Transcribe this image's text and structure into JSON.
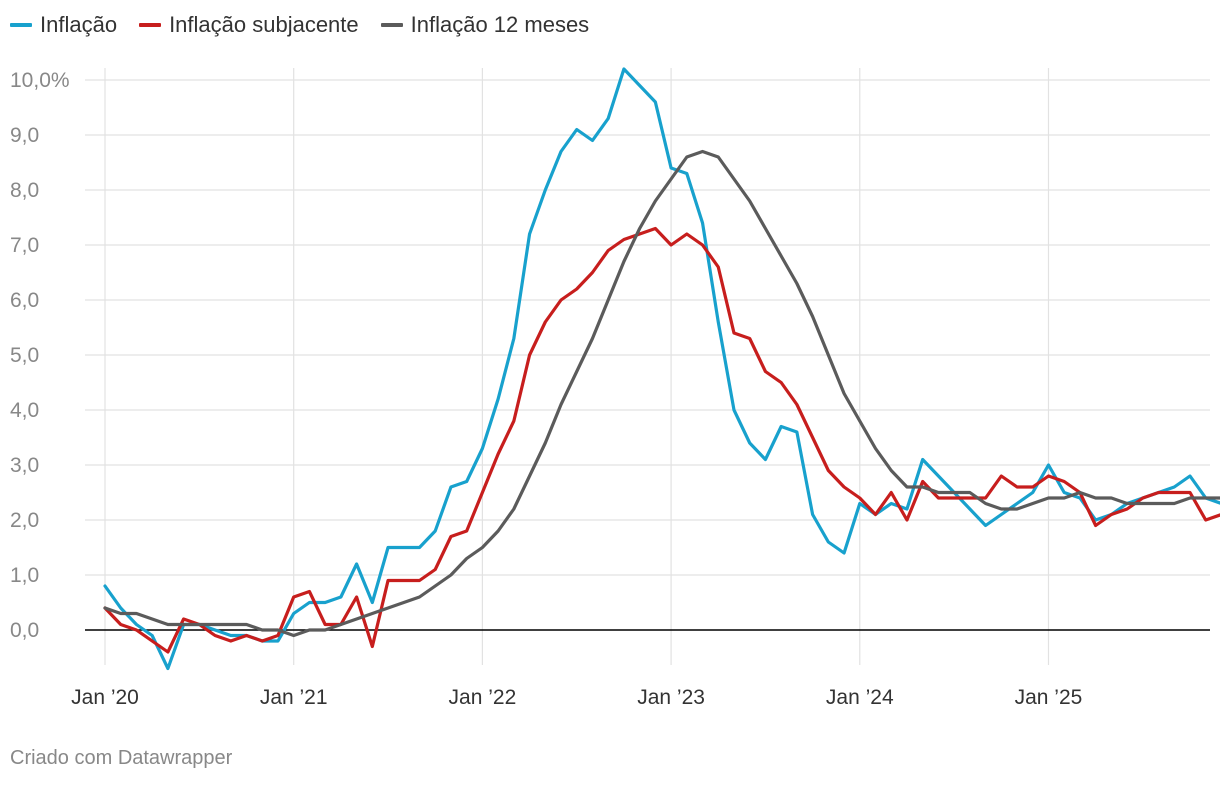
{
  "legend": [
    {
      "label": "Inflação",
      "color": "#18a1cd"
    },
    {
      "label": "Inflação subjacente",
      "color": "#c71e1d"
    },
    {
      "label": "Inflação 12 meses",
      "color": "#5b5b5b"
    }
  ],
  "footer": "Criado com Datawrapper",
  "chart_data": {
    "type": "line",
    "title": "",
    "xlabel": "",
    "ylabel": "",
    "ylim": [
      -0.7,
      10.2
    ],
    "y_ticks": [
      {
        "value": 10,
        "label": "10,0%"
      },
      {
        "value": 9,
        "label": "9,0"
      },
      {
        "value": 8,
        "label": "8,0"
      },
      {
        "value": 7,
        "label": "7,0"
      },
      {
        "value": 6,
        "label": "6,0"
      },
      {
        "value": 5,
        "label": "5,0"
      },
      {
        "value": 4,
        "label": "4,0"
      },
      {
        "value": 3,
        "label": "3,0"
      },
      {
        "value": 2,
        "label": "2,0"
      },
      {
        "value": 1,
        "label": "1,0"
      },
      {
        "value": 0,
        "label": "0,0"
      }
    ],
    "x_start": "2020-01",
    "x_range_months": [
      0,
      69
    ],
    "x_ticks": [
      {
        "month_index": 0,
        "label": "Jan ’20"
      },
      {
        "month_index": 12,
        "label": "Jan ’21"
      },
      {
        "month_index": 24,
        "label": "Jan ’22"
      },
      {
        "month_index": 36,
        "label": "Jan ’23"
      },
      {
        "month_index": 48,
        "label": "Jan ’24"
      },
      {
        "month_index": 60,
        "label": "Jan ’25"
      }
    ],
    "grid": true,
    "legend_position": "top-left",
    "series": [
      {
        "name": "Inflação",
        "color": "#18a1cd",
        "values": [
          0.8,
          0.4,
          0.1,
          -0.1,
          -0.7,
          0.1,
          0.1,
          0.0,
          -0.1,
          -0.1,
          -0.2,
          -0.2,
          0.3,
          0.5,
          0.5,
          0.6,
          1.2,
          0.5,
          1.5,
          1.5,
          1.5,
          1.8,
          2.6,
          2.7,
          3.3,
          4.2,
          5.3,
          7.2,
          8.0,
          8.7,
          9.1,
          8.9,
          9.3,
          10.2,
          9.9,
          9.6,
          8.4,
          8.3,
          7.4,
          5.6,
          4.0,
          3.4,
          3.1,
          3.7,
          3.6,
          2.1,
          1.6,
          1.4,
          2.3,
          2.1,
          2.3,
          2.2,
          3.1,
          2.8,
          2.5,
          2.2,
          1.9,
          2.1,
          2.3,
          2.5,
          3.0,
          2.5,
          2.4,
          2.0,
          2.1,
          2.3,
          2.4,
          2.5,
          2.6,
          2.8,
          2.4,
          2.3
        ]
      },
      {
        "name": "Inflação subjacente",
        "color": "#c71e1d",
        "values": [
          0.4,
          0.1,
          0.0,
          -0.2,
          -0.4,
          0.2,
          0.1,
          -0.1,
          -0.2,
          -0.1,
          -0.2,
          -0.1,
          0.6,
          0.7,
          0.1,
          0.1,
          0.6,
          -0.3,
          0.9,
          0.9,
          0.9,
          1.1,
          1.7,
          1.8,
          2.5,
          3.2,
          3.8,
          5.0,
          5.6,
          6.0,
          6.2,
          6.5,
          6.9,
          7.1,
          7.2,
          7.3,
          7.0,
          7.2,
          7.0,
          6.6,
          5.4,
          5.3,
          4.7,
          4.5,
          4.1,
          3.5,
          2.9,
          2.6,
          2.4,
          2.1,
          2.5,
          2.0,
          2.7,
          2.4,
          2.4,
          2.4,
          2.4,
          2.8,
          2.6,
          2.6,
          2.8,
          2.7,
          2.5,
          1.9,
          2.1,
          2.2,
          2.4,
          2.5,
          2.5,
          2.5,
          2.0,
          2.1
        ]
      },
      {
        "name": "Inflação 12 meses",
        "color": "#5b5b5b",
        "values": [
          0.4,
          0.3,
          0.3,
          0.2,
          0.1,
          0.1,
          0.1,
          0.1,
          0.1,
          0.1,
          0.0,
          0.0,
          -0.1,
          0.0,
          0.0,
          0.1,
          0.2,
          0.3,
          0.4,
          0.5,
          0.6,
          0.8,
          1.0,
          1.3,
          1.5,
          1.8,
          2.2,
          2.8,
          3.4,
          4.1,
          4.7,
          5.3,
          6.0,
          6.7,
          7.3,
          7.8,
          8.2,
          8.6,
          8.7,
          8.6,
          8.2,
          7.8,
          7.3,
          6.8,
          6.3,
          5.7,
          5.0,
          4.3,
          3.8,
          3.3,
          2.9,
          2.6,
          2.6,
          2.5,
          2.5,
          2.5,
          2.3,
          2.2,
          2.2,
          2.3,
          2.4,
          2.4,
          2.5,
          2.4,
          2.4,
          2.3,
          2.3,
          2.3,
          2.3,
          2.4,
          2.4,
          2.4
        ]
      }
    ]
  }
}
